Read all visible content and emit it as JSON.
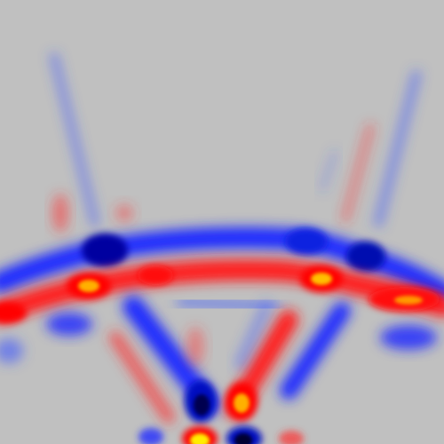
{
  "image": {
    "subject": "wave-interference-field",
    "background_color": "#c0c0c0",
    "palette": {
      "negative": "#1e2aff",
      "negative_deep": "#000050",
      "positive": "#ff1a1a",
      "positive_hot": "#ffe000",
      "neutral": "#c0c0c0"
    }
  }
}
